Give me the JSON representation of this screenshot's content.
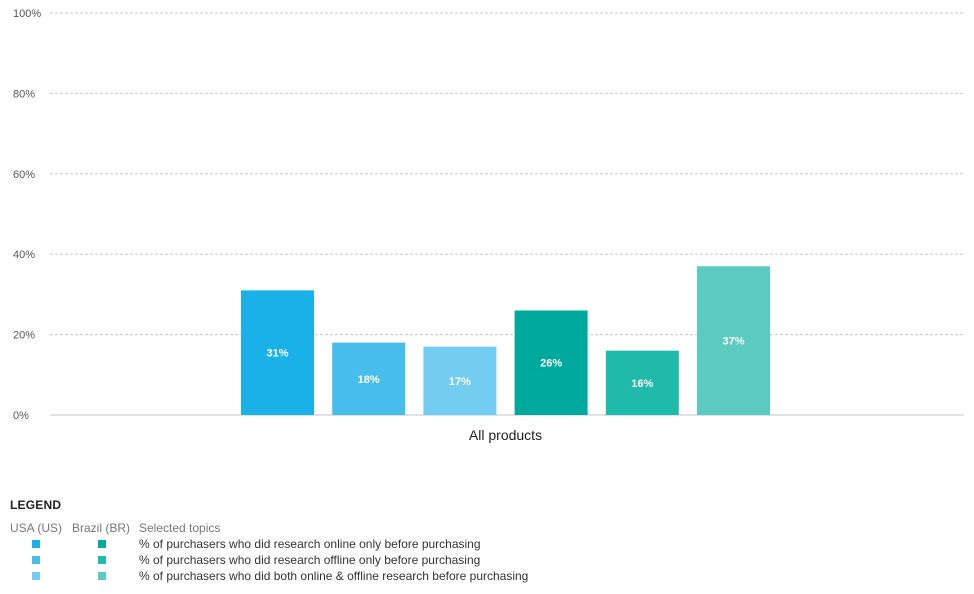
{
  "chart_data": {
    "type": "bar",
    "categories": [
      "All products"
    ],
    "ylim": [
      0,
      100
    ],
    "yticks": [
      "0%",
      "20%",
      "40%",
      "60%",
      "80%",
      "100%"
    ],
    "grid": true,
    "legend_position": "bottom",
    "series": [
      {
        "values": [
          31
        ],
        "value_labels": [
          "31%"
        ],
        "color": "#1ab0e8"
      },
      {
        "values": [
          18
        ],
        "value_labels": [
          "18%"
        ],
        "color": "#47bdeb"
      },
      {
        "values": [
          17
        ],
        "value_labels": [
          "17%"
        ],
        "color": "#73cdf0"
      },
      {
        "values": [
          26
        ],
        "value_labels": [
          "26%"
        ],
        "color": "#00a99d"
      },
      {
        "values": [
          16
        ],
        "value_labels": [
          "16%"
        ],
        "color": "#1fbaa9"
      },
      {
        "values": [
          37
        ],
        "value_labels": [
          "37%"
        ],
        "color": "#5bcbc1"
      }
    ]
  },
  "legend": {
    "title": "LEGEND",
    "col_us": "USA (US)",
    "col_br": "Brazil (BR)",
    "col_topics": "Selected topics",
    "rows": [
      {
        "topic": "% of purchasers who did research online only before purchasing",
        "us_color": "#1ab0e8",
        "br_color": "#00a99d"
      },
      {
        "topic": "% of purchasers who did research offline only before purchasing",
        "us_color": "#47bdeb",
        "br_color": "#1fbaa9"
      },
      {
        "topic": "% of purchasers who did both online & offline research before purchasing",
        "us_color": "#73cdf0",
        "br_color": "#5bcbc1"
      }
    ]
  }
}
